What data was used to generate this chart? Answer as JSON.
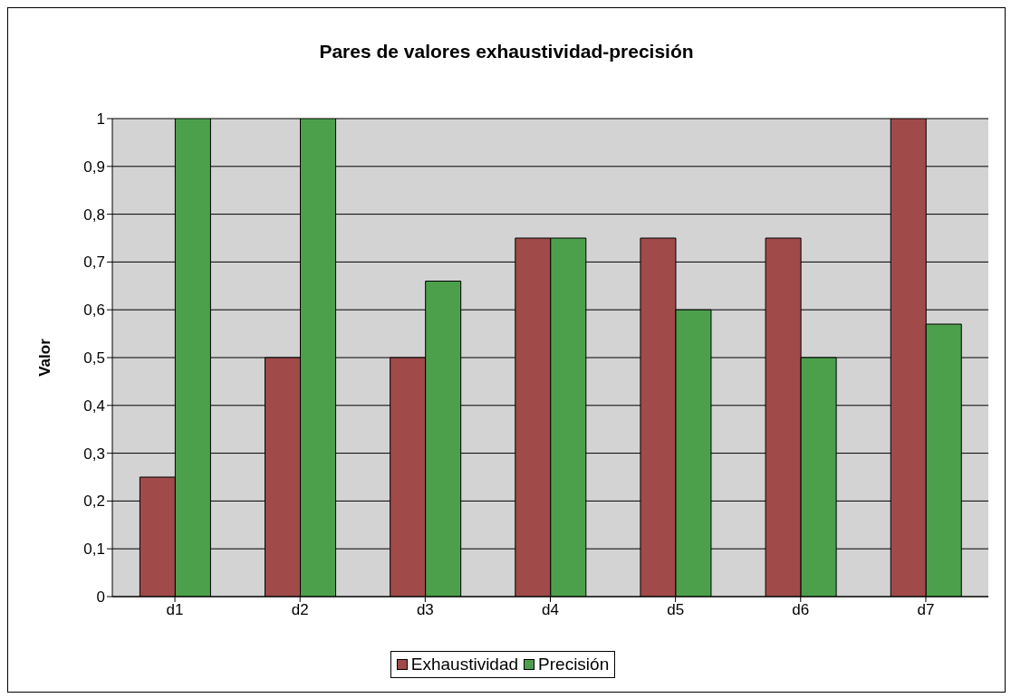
{
  "chart_data": {
    "type": "bar",
    "title": "Pares de valores exhaustividad-precisión",
    "ylabel": "Valor",
    "categories": [
      "d1",
      "d2",
      "d3",
      "d4",
      "d5",
      "d6",
      "d7"
    ],
    "series": [
      {
        "name": "Exhaustividad",
        "color": "#a04a4a",
        "values": [
          0.25,
          0.5,
          0.5,
          0.75,
          0.75,
          0.75,
          1
        ]
      },
      {
        "name": "Precisión",
        "color": "#4ca04c",
        "values": [
          1,
          1,
          0.66,
          0.75,
          0.6,
          0.5,
          0.57
        ]
      }
    ],
    "ylim": [
      0,
      1
    ],
    "yticks": [
      0,
      {
        "value": 0.1,
        "label": "0,1"
      },
      {
        "value": 0.2,
        "label": "0,2"
      },
      {
        "value": 0.3,
        "label": "0,3"
      },
      {
        "value": 0.4,
        "label": "0,4"
      },
      {
        "value": 0.5,
        "label": "0,5"
      },
      {
        "value": 0.6,
        "label": "0,6"
      },
      {
        "value": 0.7,
        "label": "0,7"
      },
      {
        "value": 0.8,
        "label": "0,8"
      },
      {
        "value": 0.9,
        "label": "0,9"
      },
      1
    ],
    "grid": "y",
    "legend": "bottom"
  }
}
